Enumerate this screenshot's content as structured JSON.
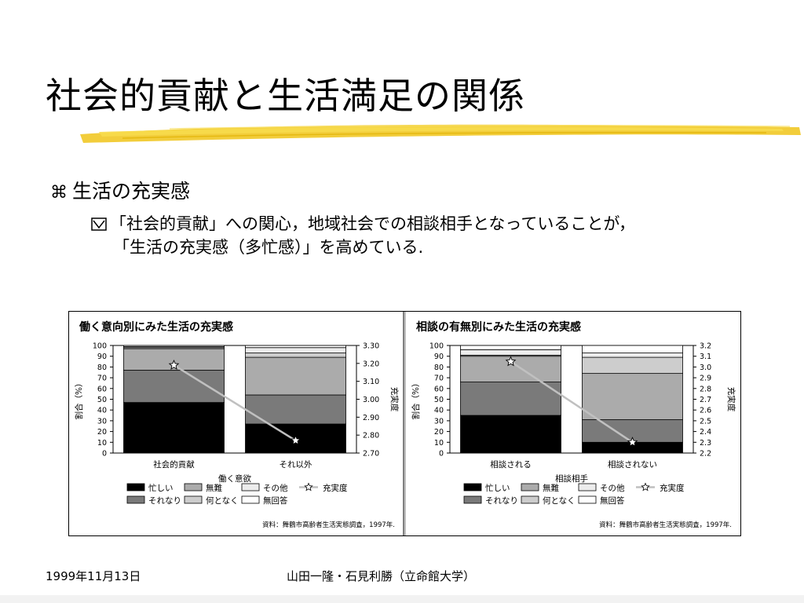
{
  "slide": {
    "title": "社会的貢献と生活満足の関係",
    "bullet": "生活の充実感",
    "sub_bullet_line1": "「社会的貢献」への関心，地域社会での相談相手となっていることが，",
    "sub_bullet_line2": "「生活の充実感（多忙感）」を高めている.",
    "footer_date": "1999年11月13日",
    "footer_authors": "山田一隆・石見利勝（立命館大学）"
  },
  "colors": {
    "underline": "#f0c419",
    "series": {
      "busy": "#000000",
      "normal": "#7a7a7a",
      "ok": "#ababab",
      "somehow": "#cdcdcd",
      "other": "#ececec",
      "noanswer": "#ffffff"
    },
    "line": "#c0c0c0"
  },
  "chart_data": [
    {
      "type": "bar",
      "stacked": true,
      "title": "働く意向別にみた生活の充実感",
      "xlabel": "働く意欲",
      "ylabel": "割合（%）",
      "ylabel_right": "充実度",
      "categories": [
        "社会的貢献",
        "それ以外"
      ],
      "ylim": [
        0,
        100
      ],
      "yticks": [
        0,
        10,
        20,
        30,
        40,
        50,
        60,
        70,
        80,
        90,
        100
      ],
      "ylim_right": [
        2.7,
        3.3
      ],
      "yticks_right": [
        "2.70",
        "2.80",
        "2.90",
        "3.00",
        "3.10",
        "3.20",
        "3.30"
      ],
      "series": [
        {
          "name": "忙しい",
          "key": "busy",
          "values": [
            47,
            27
          ]
        },
        {
          "name": "それなり",
          "key": "normal",
          "values": [
            30,
            27
          ]
        },
        {
          "name": "無難",
          "key": "ok",
          "values": [
            20,
            35
          ]
        },
        {
          "name": "何となく",
          "key": "somehow",
          "values": [
            1,
            4
          ]
        },
        {
          "name": "その他",
          "key": "other",
          "values": [
            1,
            5
          ]
        },
        {
          "name": "無回答",
          "key": "noanswer",
          "values": [
            1,
            2
          ]
        }
      ],
      "line_series": {
        "name": "充実度",
        "values": [
          3.19,
          2.77
        ]
      },
      "source": "資料：舞鶴市高齢者生活実態調査，1997年."
    },
    {
      "type": "bar",
      "stacked": true,
      "title": "相談の有無別にみた生活の充実感",
      "xlabel": "相談相手",
      "ylabel": "割合（%）",
      "ylabel_right": "充実度",
      "categories": [
        "相談される",
        "相談されない"
      ],
      "ylim": [
        0,
        100
      ],
      "yticks": [
        0,
        10,
        20,
        30,
        40,
        50,
        60,
        70,
        80,
        90,
        100
      ],
      "ylim_right": [
        2.2,
        3.2
      ],
      "yticks_right": [
        "2.2",
        "2.3",
        "2.4",
        "2.5",
        "2.6",
        "2.7",
        "2.8",
        "2.9",
        "3.0",
        "3.1",
        "3.2"
      ],
      "series": [
        {
          "name": "忙しい",
          "key": "busy",
          "values": [
            35,
            10
          ]
        },
        {
          "name": "それなり",
          "key": "normal",
          "values": [
            31,
            21
          ]
        },
        {
          "name": "無難",
          "key": "ok",
          "values": [
            24,
            43
          ]
        },
        {
          "name": "何となく",
          "key": "somehow",
          "values": [
            1,
            15
          ]
        },
        {
          "name": "その他",
          "key": "other",
          "values": [
            5,
            4
          ]
        },
        {
          "name": "無回答",
          "key": "noanswer",
          "values": [
            4,
            7
          ]
        }
      ],
      "line_series": {
        "name": "充実度",
        "values": [
          3.05,
          2.3
        ]
      },
      "source": "資料：舞鶴市高齢者生活実態調査，1997年."
    }
  ]
}
